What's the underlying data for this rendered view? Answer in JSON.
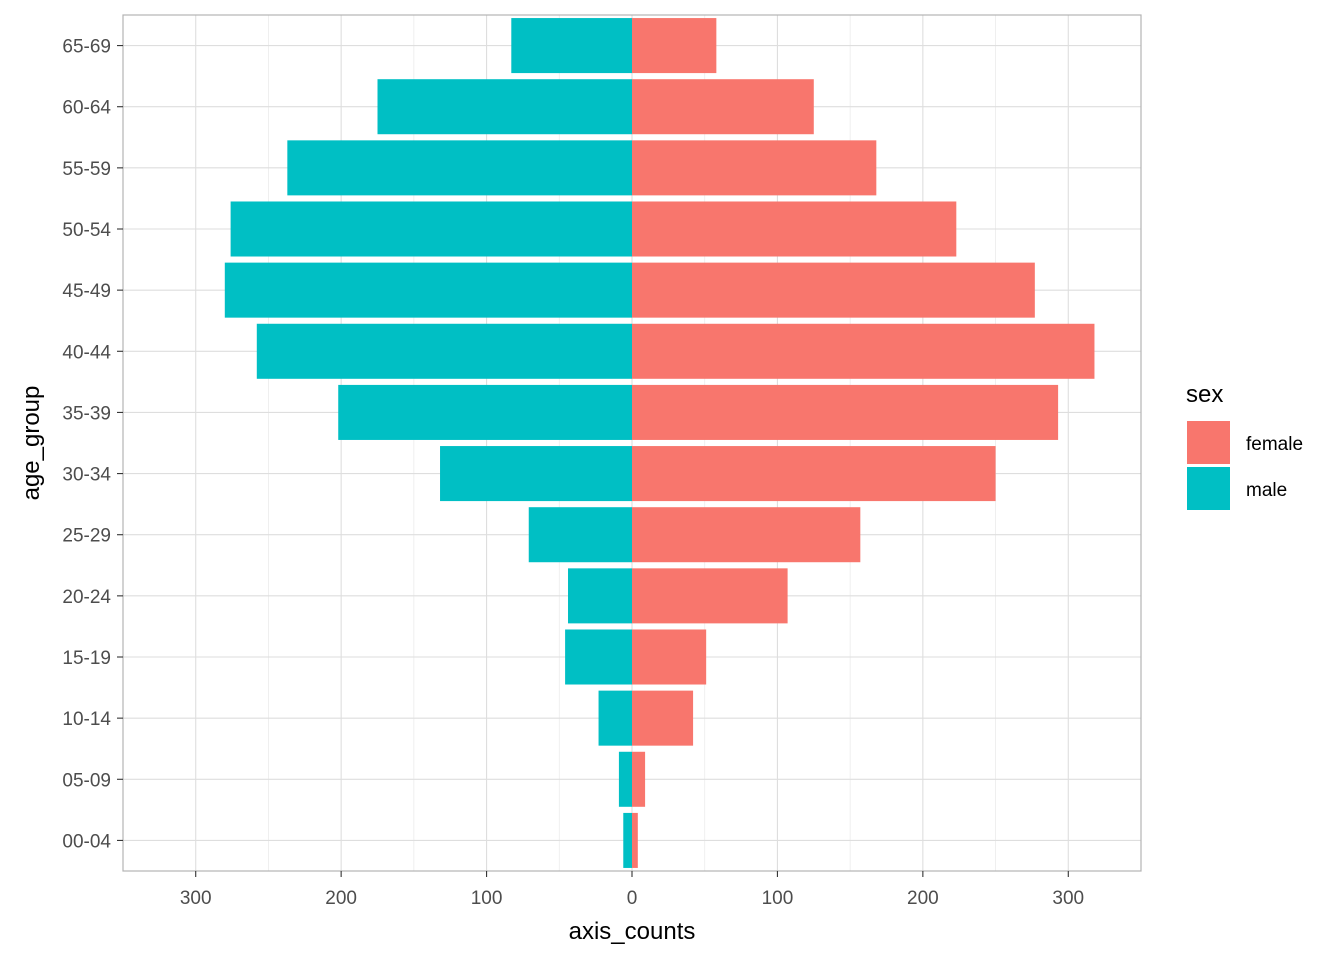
{
  "chart_data": {
    "type": "bar",
    "orientation": "horizontal",
    "layout": "population-pyramid",
    "categories": [
      "00-04",
      "05-09",
      "10-14",
      "15-19",
      "20-24",
      "25-29",
      "30-34",
      "35-39",
      "40-44",
      "45-49",
      "50-54",
      "55-59",
      "60-64",
      "65-69"
    ],
    "series": [
      {
        "name": "female",
        "color": "#F8766D",
        "values": [
          4,
          9,
          42,
          51,
          107,
          157,
          250,
          293,
          318,
          277,
          223,
          168,
          125,
          58
        ]
      },
      {
        "name": "male",
        "color": "#00BFC4",
        "values": [
          6,
          9,
          23,
          46,
          44,
          71,
          132,
          202,
          258,
          280,
          276,
          237,
          175,
          83
        ]
      }
    ],
    "xlabel": "axis_counts",
    "ylabel": "age_group",
    "xlim": [
      -350,
      350
    ],
    "xticks": [
      -300,
      -200,
      -100,
      0,
      100,
      200,
      300
    ],
    "xtick_labels": [
      "300",
      "200",
      "100",
      "0",
      "100",
      "200",
      "300"
    ],
    "grid": true,
    "legend": {
      "title": "sex",
      "position": "right",
      "entries": [
        "female",
        "male"
      ]
    }
  }
}
